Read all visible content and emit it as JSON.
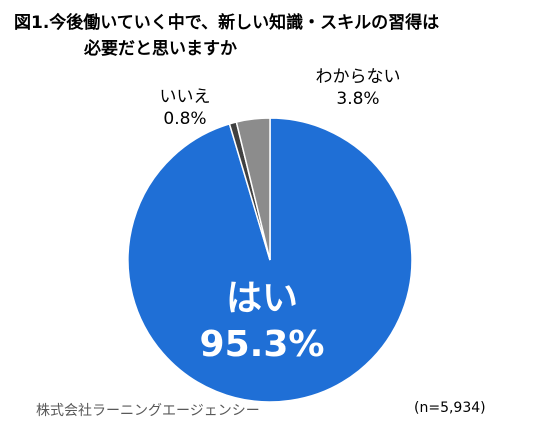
{
  "title": {
    "line1": "図1.今後働いていく中で、新しい知識・スキルの習得は",
    "line2": "必要だと思いますか"
  },
  "source": "株式会社ラーニングエージェンシー",
  "sample_size": "(n=5,934)",
  "chart_data": {
    "type": "pie",
    "categories": [
      "はい",
      "いいえ",
      "わからない"
    ],
    "values": [
      95.3,
      0.8,
      3.8
    ],
    "value_labels": [
      "95.3%",
      "0.8%",
      "3.8%"
    ],
    "colors": [
      "#1F6FD6",
      "#404040",
      "#8C8C8C"
    ],
    "title": "図1.今後働いていく中で、新しい知識・スキルの習得は必要だと思いますか",
    "start": "12 o'clock",
    "direction": "clockwise",
    "label_placement": [
      "inside",
      "outside-top-left",
      "outside-top-right"
    ]
  }
}
